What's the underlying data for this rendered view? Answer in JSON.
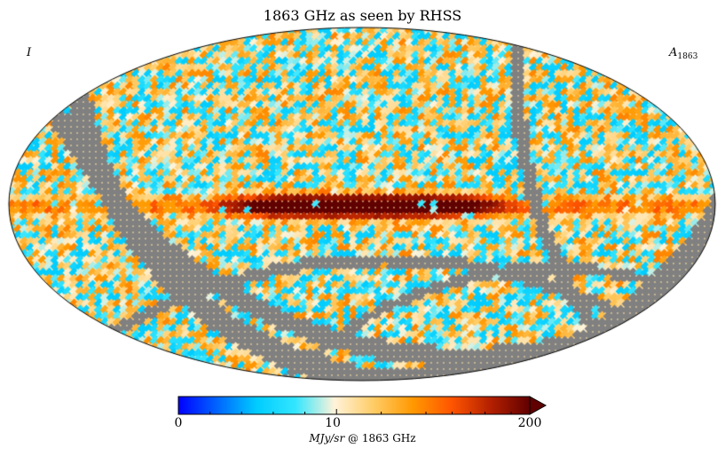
{
  "chart_data": {
    "type": "heatmap",
    "projection": "mollweide",
    "title": "1863 GHz as seen by RHSS",
    "stokes_label": "I",
    "component_label": {
      "symbol": "A",
      "subscript": "1863"
    },
    "colorbar": {
      "min": 0,
      "mid": 10,
      "max": 200,
      "tick_labels": [
        "0",
        "10",
        "200"
      ],
      "unit_label": {
        "unit": "MJy/sr",
        "suffix": "@ 1863 GHz"
      },
      "extend": "max",
      "stops": [
        "#0000ff",
        "#0066ff",
        "#00ccff",
        "#33e6ff",
        "#fff3d9",
        "#ffcc66",
        "#ff9900",
        "#ff5500",
        "#b32000",
        "#600000"
      ]
    },
    "mask_color": "#808080",
    "galactic_plane": {
      "core_value": 200,
      "core_longitude_range": [
        -60,
        60
      ],
      "core_color": "#700000",
      "edge_color": "#ff7a00"
    },
    "background_value_range": [
      5,
      40
    ],
    "scan_gap_masks": 5
  }
}
